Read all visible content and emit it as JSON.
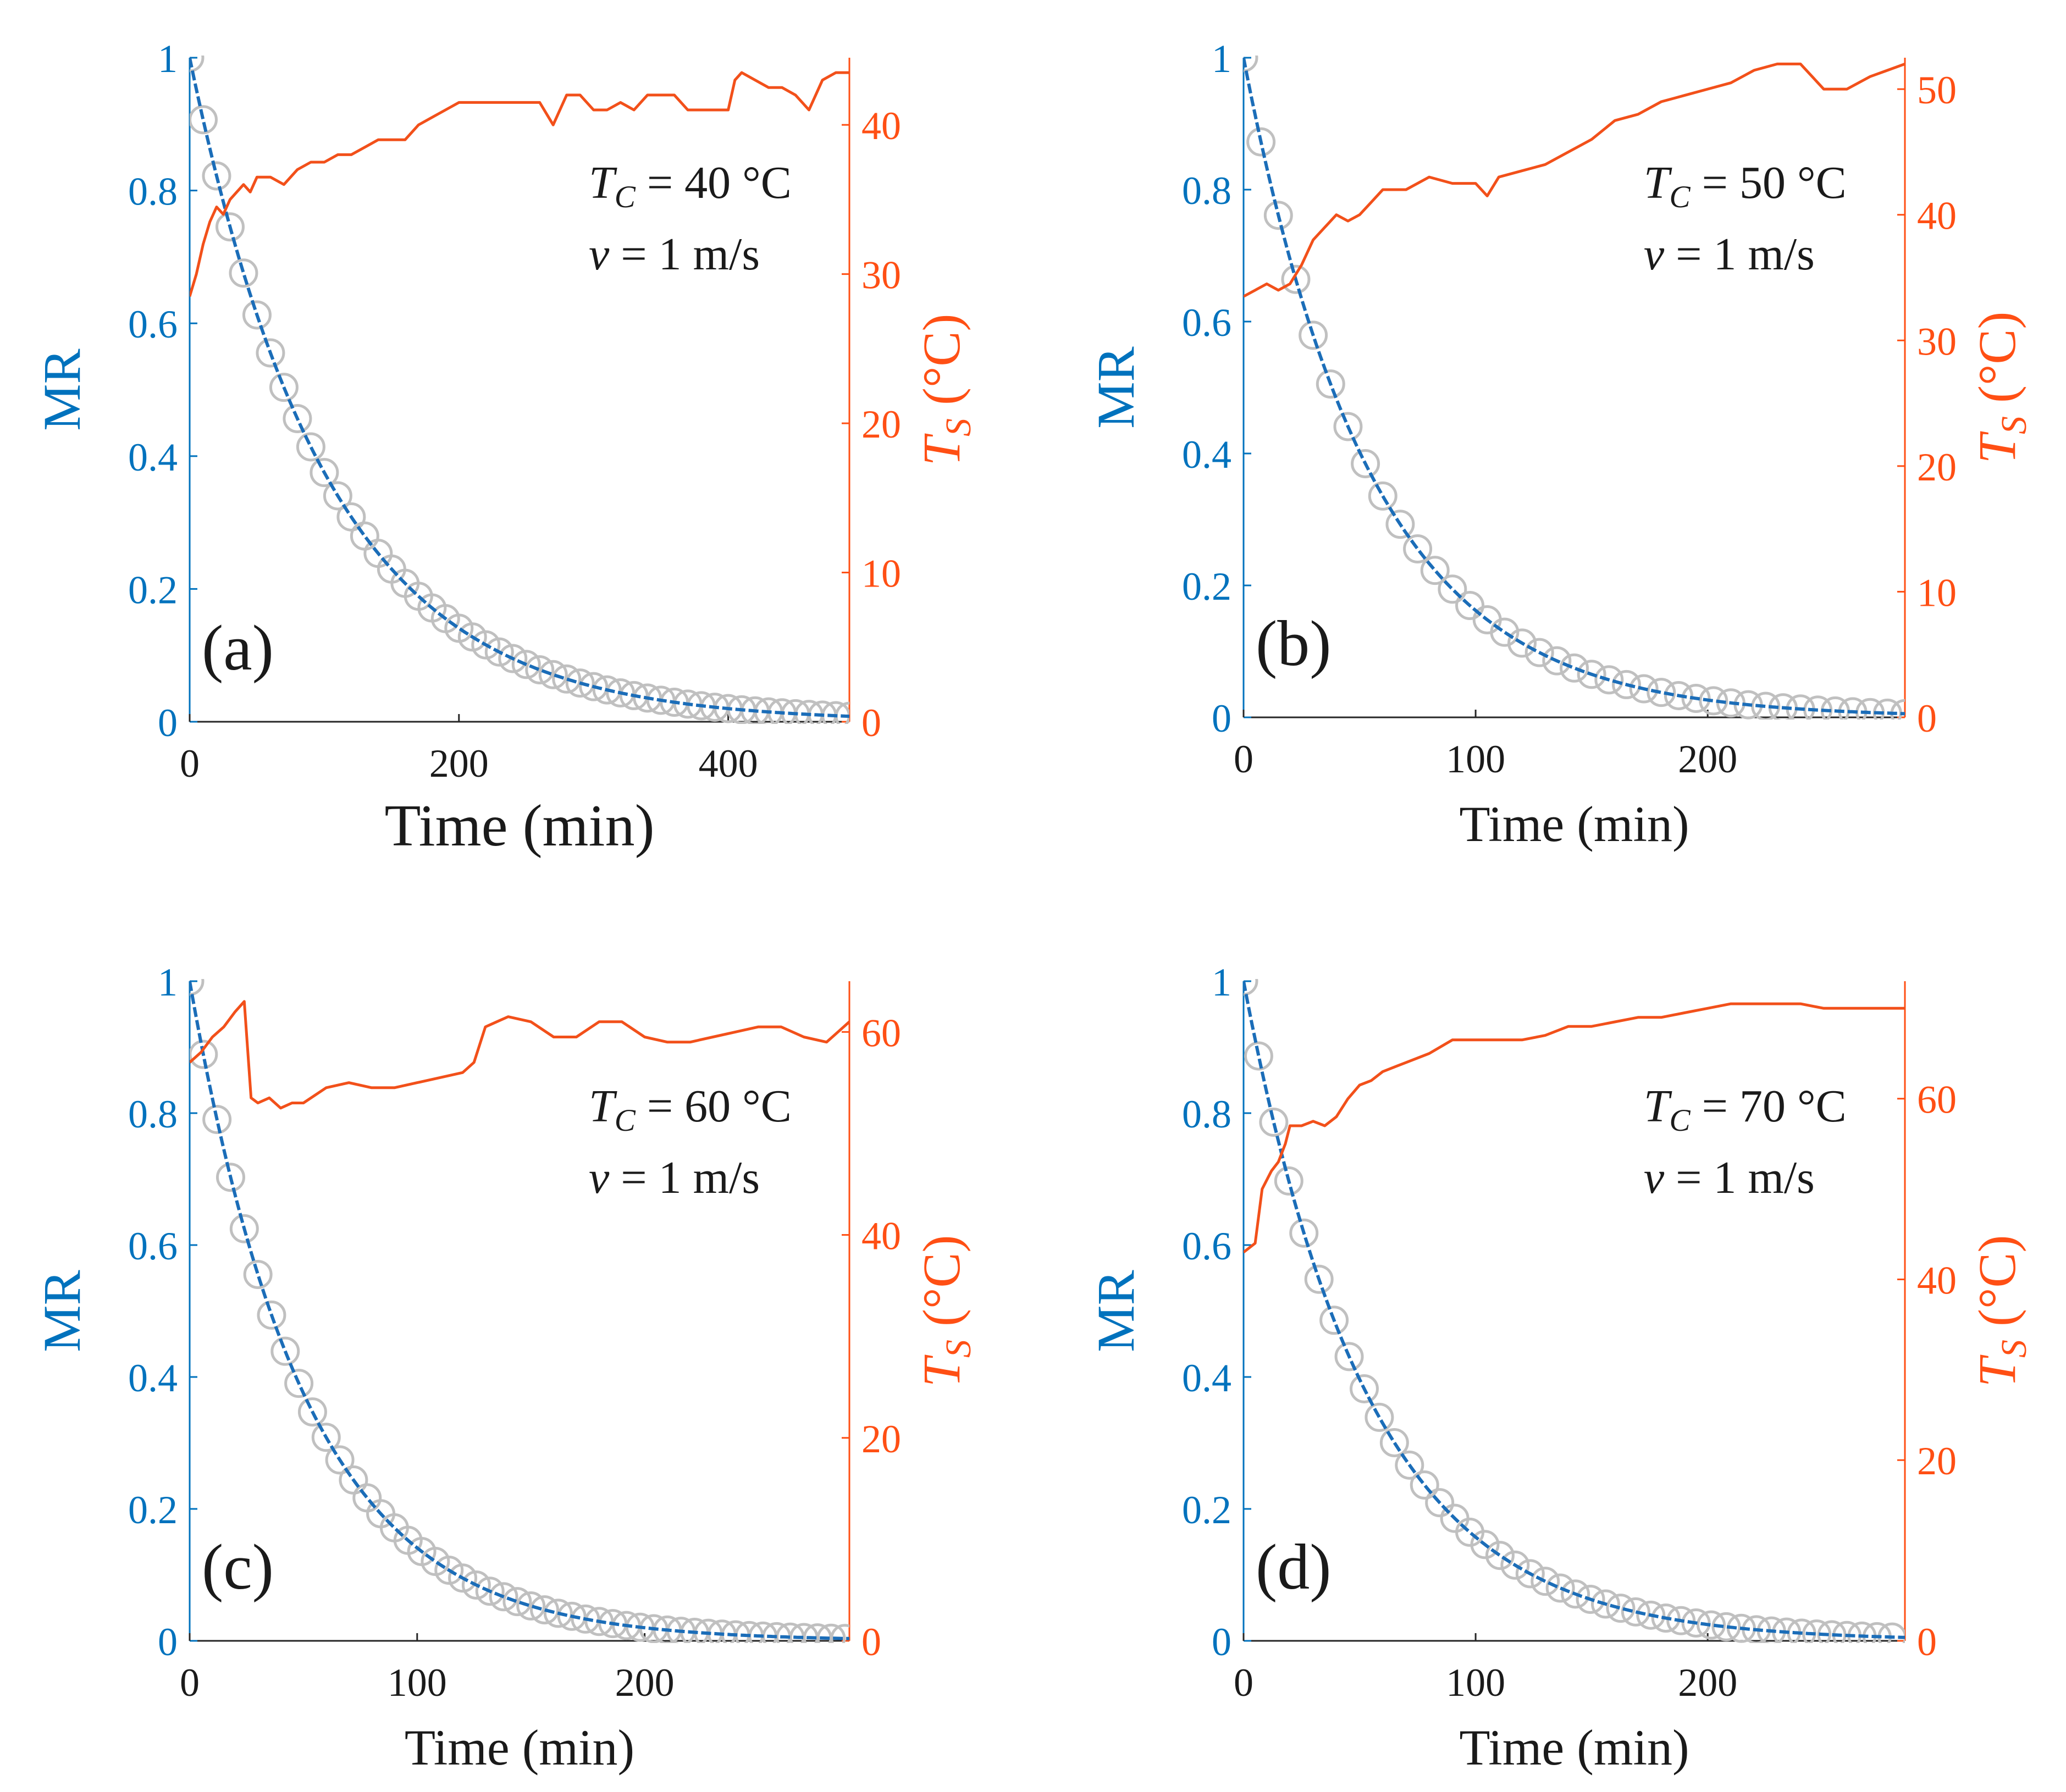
{
  "colors": {
    "mr_axis": "#0072BD",
    "ts_axis": "#FF4F14",
    "model_line": "#1B6DB8",
    "ts_line": "#F2501A",
    "markers": "#C0C0C0",
    "text": "#1a1a1a"
  },
  "chart_data": [
    {
      "type": "line",
      "panel_label": "(a)",
      "annotation": {
        "tc_label": "T_C = 40 °C",
        "v_label": "v = 1 m/s"
      },
      "xlabel": "Time (min)",
      "ylabel_left": "MR",
      "ylabel_right": "T_S (°C)",
      "xlim": [
        0,
        490
      ],
      "xticks": [
        0,
        200,
        400
      ],
      "ylim_left": [
        0,
        1
      ],
      "yticks_left": [
        0,
        0.2,
        0.4,
        0.6,
        0.8,
        1
      ],
      "ytick_labels_left": [
        "0",
        "0.2",
        "0.4",
        "0.6",
        "0.8",
        "1"
      ],
      "ylim_right": [
        0,
        44.5
      ],
      "yticks_right": [
        0,
        10,
        20,
        30,
        40
      ],
      "mr_k": 0.0098,
      "marker_step": 10,
      "ts_series": {
        "name": "T_S",
        "x": [
          0,
          5,
          10,
          15,
          20,
          25,
          30,
          35,
          40,
          45,
          50,
          60,
          70,
          80,
          90,
          100,
          110,
          120,
          130,
          140,
          150,
          160,
          170,
          180,
          190,
          200,
          210,
          220,
          230,
          240,
          250,
          260,
          270,
          280,
          290,
          300,
          310,
          320,
          330,
          340,
          350,
          360,
          370,
          380,
          390,
          400,
          405,
          410,
          420,
          430,
          440,
          450,
          460,
          470,
          480,
          490
        ],
        "y": [
          28.5,
          30.0,
          32.0,
          33.5,
          34.5,
          34.0,
          35.0,
          35.5,
          36.0,
          35.5,
          36.5,
          36.5,
          36.0,
          37.0,
          37.5,
          37.5,
          38.0,
          38.0,
          38.5,
          39.0,
          39.0,
          39.0,
          40.0,
          40.5,
          41.0,
          41.5,
          41.5,
          41.5,
          41.5,
          41.5,
          41.5,
          41.5,
          40.0,
          42.0,
          42.0,
          41.0,
          41.0,
          41.5,
          41.0,
          42.0,
          42.0,
          42.0,
          41.0,
          41.0,
          41.0,
          41.0,
          43.0,
          43.5,
          43.0,
          42.5,
          42.5,
          42.0,
          41.0,
          43.0,
          43.5,
          43.5
        ]
      }
    },
    {
      "type": "line",
      "panel_label": "(b)",
      "annotation": {
        "tc_label": "T_C = 50 °C",
        "v_label": "v = 1 m/s"
      },
      "xlabel": "Time (min)",
      "ylabel_left": "MR",
      "ylabel_right": "T_S (°C)",
      "xlim": [
        0,
        285
      ],
      "xticks": [
        0,
        100,
        200
      ],
      "ylim_left": [
        0,
        1
      ],
      "yticks_left": [
        0,
        0.2,
        0.4,
        0.6,
        0.8,
        1
      ],
      "ytick_labels_left": [
        "0",
        "0.2",
        "0.4",
        "0.6",
        "0.8",
        "1"
      ],
      "ylim_right": [
        0,
        52.5
      ],
      "yticks_right": [
        0,
        10,
        20,
        30,
        40,
        50
      ],
      "mr_k": 0.0182,
      "marker_step": 7.5,
      "ts_series": {
        "name": "T_S",
        "x": [
          0,
          5,
          10,
          15,
          20,
          25,
          30,
          35,
          40,
          45,
          50,
          55,
          60,
          70,
          80,
          90,
          100,
          105,
          110,
          120,
          130,
          140,
          150,
          160,
          170,
          180,
          190,
          200,
          210,
          220,
          230,
          240,
          250,
          260,
          270,
          285
        ],
        "y": [
          33.5,
          34.0,
          34.5,
          34.0,
          34.5,
          36.0,
          38.0,
          39.0,
          40.0,
          39.5,
          40.0,
          41.0,
          42.0,
          42.0,
          43.0,
          42.5,
          42.5,
          41.5,
          43.0,
          43.5,
          44.0,
          45.0,
          46.0,
          47.5,
          48.0,
          49.0,
          49.5,
          50.0,
          50.5,
          51.5,
          52.0,
          52.0,
          50.0,
          50.0,
          51.0,
          52.0
        ]
      }
    },
    {
      "type": "line",
      "panel_label": "(c)",
      "annotation": {
        "tc_label": "T_C = 60 °C",
        "v_label": "v = 1 m/s"
      },
      "xlabel": "Time (min)",
      "ylabel_left": "MR",
      "ylabel_right": "T_S (°C)",
      "xlim": [
        0,
        290
      ],
      "xticks": [
        0,
        100,
        200
      ],
      "ylim_left": [
        0,
        1
      ],
      "yticks_left": [
        0,
        0.2,
        0.4,
        0.6,
        0.8,
        1
      ],
      "ytick_labels_left": [
        "0",
        "0.2",
        "0.4",
        "0.6",
        "0.8",
        "1"
      ],
      "ylim_right": [
        0,
        65
      ],
      "yticks_right": [
        0,
        20,
        40,
        60
      ],
      "mr_k": 0.0196,
      "marker_step": 6,
      "ts_series": {
        "name": "T_S",
        "x": [
          0,
          5,
          10,
          15,
          20,
          24,
          27,
          30,
          35,
          40,
          45,
          50,
          60,
          70,
          80,
          90,
          100,
          110,
          120,
          125,
          130,
          135,
          140,
          150,
          160,
          170,
          180,
          190,
          200,
          210,
          220,
          230,
          240,
          250,
          260,
          270,
          280,
          290
        ],
        "y": [
          57.0,
          58.0,
          59.5,
          60.5,
          62.0,
          63.0,
          53.5,
          53.0,
          53.5,
          52.5,
          53.0,
          53.0,
          54.5,
          55.0,
          54.5,
          54.5,
          55.0,
          55.5,
          56.0,
          57.0,
          60.5,
          61.0,
          61.5,
          61.0,
          59.5,
          59.5,
          61.0,
          61.0,
          59.5,
          59.0,
          59.0,
          59.5,
          60.0,
          60.5,
          60.5,
          59.5,
          59.0,
          61.0
        ]
      }
    },
    {
      "type": "line",
      "panel_label": "(d)",
      "annotation": {
        "tc_label": "T_C = 70 °C",
        "v_label": "v = 1 m/s"
      },
      "xlabel": "Time (min)",
      "ylabel_left": "MR",
      "ylabel_right": "T_S (°C)",
      "xlim": [
        0,
        285
      ],
      "xticks": [
        0,
        100,
        200
      ],
      "ylim_left": [
        0,
        1
      ],
      "yticks_left": [
        0,
        0.2,
        0.4,
        0.6,
        0.8,
        1
      ],
      "ytick_labels_left": [
        "0",
        "0.2",
        "0.4",
        "0.6",
        "0.8",
        "1"
      ],
      "ylim_right": [
        0,
        73
      ],
      "yticks_right": [
        0,
        20,
        40,
        60
      ],
      "mr_k": 0.0185,
      "marker_step": 6.5,
      "ts_series": {
        "name": "T_S",
        "x": [
          0,
          5,
          8,
          12,
          15,
          18,
          20,
          25,
          30,
          35,
          40,
          45,
          50,
          55,
          60,
          70,
          80,
          90,
          100,
          110,
          120,
          130,
          140,
          150,
          160,
          170,
          180,
          190,
          200,
          210,
          220,
          230,
          240,
          250,
          260,
          270,
          285
        ],
        "y": [
          43.0,
          44.0,
          50.0,
          52.0,
          53.0,
          55.0,
          57.0,
          57.0,
          57.5,
          57.0,
          58.0,
          60.0,
          61.5,
          62.0,
          63.0,
          64.0,
          65.0,
          66.5,
          66.5,
          66.5,
          66.5,
          67.0,
          68.0,
          68.0,
          68.5,
          69.0,
          69.0,
          69.5,
          70.0,
          70.5,
          70.5,
          70.5,
          70.5,
          70.0,
          70.0,
          70.0,
          70.0
        ]
      }
    }
  ]
}
